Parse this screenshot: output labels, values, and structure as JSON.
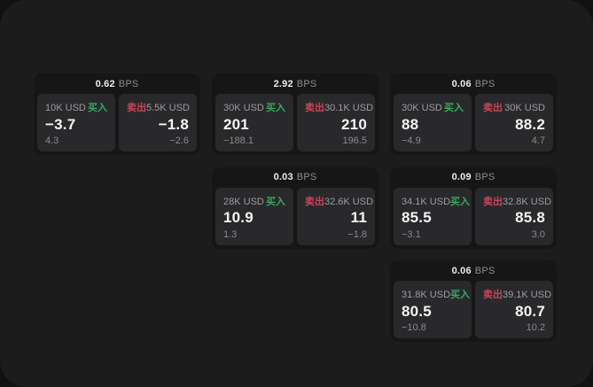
{
  "labels": {
    "buy": "买入",
    "sell": "卖出",
    "bps_unit": "BPS"
  },
  "colors": {
    "buy": "#3aa862",
    "sell": "#cb4458",
    "window_background": "#1c1c1d",
    "card_background": "#161617",
    "panel_background": "#29292b"
  },
  "cards": [
    {
      "row": 1,
      "col": 1,
      "bps": "0.62",
      "buy": {
        "notional": "10K USD",
        "price": "−3.7",
        "delta": "4.3"
      },
      "sell": {
        "notional": "5.5K USD",
        "price": "−1.8",
        "delta": "−2.6"
      }
    },
    {
      "row": 1,
      "col": 2,
      "bps": "2.92",
      "buy": {
        "notional": "30K USD",
        "price": "201",
        "delta": "−188.1"
      },
      "sell": {
        "notional": "30.1K USD",
        "price": "210",
        "delta": "196.5"
      }
    },
    {
      "row": 1,
      "col": 3,
      "bps": "0.06",
      "buy": {
        "notional": "30K USD",
        "price": "88",
        "delta": "−4.9"
      },
      "sell": {
        "notional": "30K USD",
        "price": "88.2",
        "delta": "4.7"
      }
    },
    {
      "row": 2,
      "col": 2,
      "bps": "0.03",
      "buy": {
        "notional": "28K USD",
        "price": "10.9",
        "delta": "1.3"
      },
      "sell": {
        "notional": "32.6K USD",
        "price": "11",
        "delta": "−1.8"
      }
    },
    {
      "row": 2,
      "col": 3,
      "bps": "0.09",
      "buy": {
        "notional": "34.1K USD",
        "price": "85.5",
        "delta": "−3.1"
      },
      "sell": {
        "notional": "32.8K USD",
        "price": "85.8",
        "delta": "3.0"
      }
    },
    {
      "row": 3,
      "col": 3,
      "bps": "0.06",
      "buy": {
        "notional": "31.8K USD",
        "price": "80.5",
        "delta": "−10.8"
      },
      "sell": {
        "notional": "39.1K USD",
        "price": "80.7",
        "delta": "10.2"
      }
    }
  ]
}
